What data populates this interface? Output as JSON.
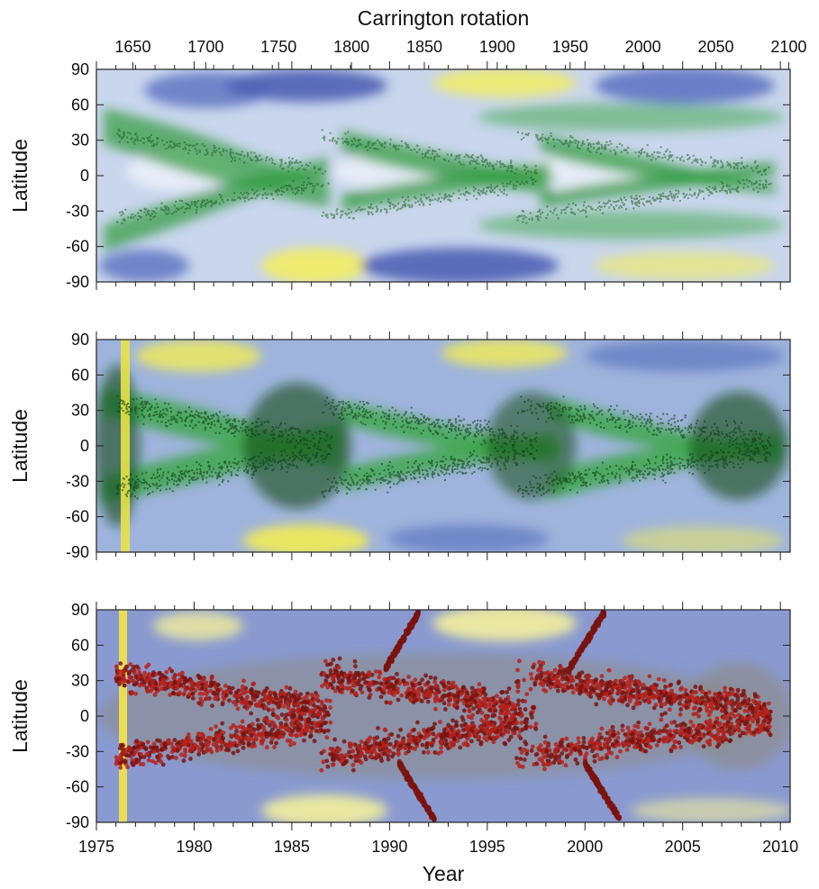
{
  "chart_data": [
    {
      "type": "heatmap",
      "panel": "top",
      "top_axis_label": "Carrington rotation",
      "top_ticks": [
        "1650",
        "1700",
        "1750",
        "1800",
        "1850",
        "1900",
        "1950",
        "2000",
        "2050",
        "2100"
      ],
      "top_tick_values": [
        1650,
        1700,
        1750,
        1800,
        1850,
        1900,
        1950,
        2000,
        2050,
        2100
      ],
      "ylabel": "Latitude",
      "y_ticks": [
        "90",
        "60",
        "30",
        "0",
        "-30",
        "-60",
        "-90"
      ],
      "y_tick_values": [
        90,
        60,
        30,
        0,
        -30,
        -60,
        -90
      ],
      "ylim": [
        -90,
        90
      ],
      "xlim": [
        1975,
        2010.5
      ],
      "colors": {
        "band": "#2e9a3a",
        "band_dark": "#1d5e24",
        "pale": "#b8cce8",
        "blue": "#5b6fc0",
        "yellow": "#f4ee5a"
      }
    },
    {
      "type": "heatmap",
      "panel": "middle",
      "ylabel": "Latitude",
      "y_ticks": [
        "90",
        "60",
        "30",
        "0",
        "-30",
        "-60",
        "-90"
      ],
      "y_tick_values": [
        90,
        60,
        30,
        0,
        -30,
        -60,
        -90
      ],
      "ylim": [
        -90,
        90
      ],
      "xlim": [
        1975,
        2010.5
      ],
      "colors": {
        "band": "#3aa642",
        "band_dark": "#124a18",
        "pale": "#9fb4dc",
        "blue": "#6b84c6",
        "yellow": "#f2ec55"
      }
    },
    {
      "type": "scatter",
      "panel": "bottom",
      "ylabel": "Latitude",
      "xlabel": "Year",
      "y_ticks": [
        "90",
        "60",
        "30",
        "0",
        "-30",
        "-60",
        "-90"
      ],
      "y_tick_values": [
        90,
        60,
        30,
        0,
        -30,
        -60,
        -90
      ],
      "x_ticks": [
        "1975",
        "1980",
        "1985",
        "1990",
        "1995",
        "2000",
        "2005",
        "2010"
      ],
      "x_tick_values": [
        1975,
        1980,
        1985,
        1990,
        1995,
        2000,
        2005,
        2010
      ],
      "ylim": [
        -90,
        90
      ],
      "xlim": [
        1975,
        2010.5
      ],
      "colors": {
        "points": "#b5221c",
        "points_dark": "#7a1410",
        "background": "#8a9ad0",
        "grey": "#8c8c8c",
        "yellow": "#f3ef9c"
      }
    }
  ]
}
